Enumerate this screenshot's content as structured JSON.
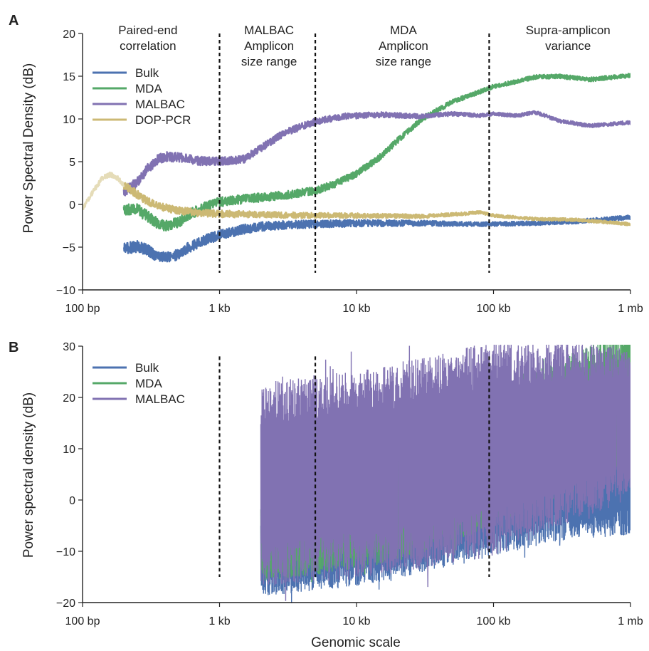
{
  "chart_data": [
    {
      "panel": "A",
      "type": "line",
      "ylabel": "Power Spectral Density (dB)",
      "xlabel": "",
      "x_scale": "log",
      "xlim": [
        100,
        1000000
      ],
      "ylim": [
        -10,
        20
      ],
      "x_ticks": [
        100,
        1000,
        10000,
        100000,
        1000000
      ],
      "x_tick_labels": [
        "100 bp",
        "1 kb",
        "10 kb",
        "100 kb",
        "1 mb"
      ],
      "y_ticks": [
        -10,
        -5,
        0,
        5,
        10,
        15,
        20
      ],
      "y_tick_labels": [
        "−10",
        "−5",
        "0",
        "5",
        "10",
        "15",
        "20"
      ],
      "dashed_lines_x": [
        1000,
        5000,
        93000
      ],
      "region_labels": [
        {
          "lines": [
            "Paired-end",
            "correlation"
          ],
          "x": 300
        },
        {
          "lines": [
            "MALBAC",
            "Amplicon",
            "size range"
          ],
          "x": 2300
        },
        {
          "lines": [
            "MDA",
            "Amplicon",
            "size range"
          ],
          "x": 22000
        },
        {
          "lines": [
            "Supra-amplicon",
            "variance"
          ],
          "x": 350000
        }
      ],
      "legend_position": "upper-left",
      "series": [
        {
          "name": "Bulk",
          "color": "#4c72b0",
          "noise": 0.7,
          "points": [
            [
              200,
              -5.2
            ],
            [
              250,
              -4.9
            ],
            [
              300,
              -5.4
            ],
            [
              350,
              -6.0
            ],
            [
              400,
              -6.2
            ],
            [
              500,
              -5.9
            ],
            [
              600,
              -5.0
            ],
            [
              800,
              -4.1
            ],
            [
              1000,
              -3.6
            ],
            [
              1500,
              -2.9
            ],
            [
              2000,
              -2.6
            ],
            [
              3000,
              -2.4
            ],
            [
              5000,
              -2.3
            ],
            [
              10000,
              -2.2
            ],
            [
              30000,
              -2.2
            ],
            [
              60000,
              -2.3
            ],
            [
              100000,
              -2.3
            ],
            [
              200000,
              -2.2
            ],
            [
              400000,
              -2.0
            ],
            [
              1000000,
              -1.5
            ]
          ]
        },
        {
          "name": "MDA",
          "color": "#55a868",
          "noise": 0.7,
          "points": [
            [
              200,
              -0.5
            ],
            [
              250,
              -0.6
            ],
            [
              300,
              -1.4
            ],
            [
              350,
              -2.2
            ],
            [
              400,
              -2.6
            ],
            [
              500,
              -2.1
            ],
            [
              600,
              -1.2
            ],
            [
              800,
              -0.2
            ],
            [
              1000,
              0.3
            ],
            [
              1500,
              0.6
            ],
            [
              2000,
              0.8
            ],
            [
              3000,
              1.1
            ],
            [
              5000,
              1.6
            ],
            [
              7000,
              2.4
            ],
            [
              10000,
              3.6
            ],
            [
              15000,
              5.6
            ],
            [
              20000,
              7.5
            ],
            [
              30000,
              10.0
            ],
            [
              50000,
              12.0
            ],
            [
              80000,
              13.2
            ],
            [
              100000,
              13.8
            ],
            [
              150000,
              14.4
            ],
            [
              200000,
              14.9
            ],
            [
              300000,
              15.0
            ],
            [
              500000,
              14.6
            ],
            [
              1000000,
              15.1
            ]
          ]
        },
        {
          "name": "MALBAC",
          "color": "#8172b2",
          "noise": 0.6,
          "points": [
            [
              200,
              1.5
            ],
            [
              250,
              2.6
            ],
            [
              300,
              4.2
            ],
            [
              350,
              5.2
            ],
            [
              400,
              5.6
            ],
            [
              500,
              5.5
            ],
            [
              700,
              5.1
            ],
            [
              1000,
              5.0
            ],
            [
              1500,
              5.3
            ],
            [
              2000,
              6.6
            ],
            [
              3000,
              8.4
            ],
            [
              5000,
              9.7
            ],
            [
              8000,
              10.3
            ],
            [
              15000,
              10.5
            ],
            [
              30000,
              10.3
            ],
            [
              50000,
              10.6
            ],
            [
              80000,
              10.4
            ],
            [
              100000,
              10.6
            ],
            [
              150000,
              10.4
            ],
            [
              200000,
              10.8
            ],
            [
              300000,
              9.8
            ],
            [
              500000,
              9.2
            ],
            [
              1000000,
              9.6
            ]
          ]
        },
        {
          "name": "DOP-PCR",
          "color": "#ccb974",
          "noise": 0.5,
          "points": [
            [
              200,
              2.3
            ],
            [
              250,
              1.2
            ],
            [
              300,
              0.3
            ],
            [
              400,
              -0.4
            ],
            [
              500,
              -0.7
            ],
            [
              700,
              -1.0
            ],
            [
              1000,
              -1.1
            ],
            [
              2000,
              -1.2
            ],
            [
              5000,
              -1.3
            ],
            [
              10000,
              -1.3
            ],
            [
              30000,
              -1.4
            ],
            [
              60000,
              -1.1
            ],
            [
              80000,
              -0.9
            ],
            [
              100000,
              -1.3
            ],
            [
              200000,
              -1.7
            ],
            [
              400000,
              -1.8
            ],
            [
              1000000,
              -2.3
            ]
          ]
        },
        {
          "name": "",
          "color": "#e5dcb8",
          "noise": 0.3,
          "points": [
            [
              100,
              -0.5
            ],
            [
              110,
              0.6
            ],
            [
              125,
              2.0
            ],
            [
              140,
              3.1
            ],
            [
              160,
              3.5
            ],
            [
              180,
              3.1
            ],
            [
              200,
              2.3
            ]
          ]
        }
      ]
    },
    {
      "panel": "B",
      "type": "line",
      "ylabel": "Power spectral density (dB)",
      "xlabel": "Genomic scale",
      "x_scale": "log",
      "xlim": [
        100,
        1000000
      ],
      "ylim": [
        -20,
        30
      ],
      "x_ticks": [
        100,
        1000,
        10000,
        100000,
        1000000
      ],
      "x_tick_labels": [
        "100 bp",
        "1 kb",
        "10 kb",
        "100 kb",
        "1 mb"
      ],
      "y_ticks": [
        -20,
        -10,
        0,
        10,
        20,
        30
      ],
      "y_tick_labels": [
        "−20",
        "−10",
        "0",
        "10",
        "20",
        "30"
      ],
      "dashed_lines_x": [
        1000,
        5000,
        93000
      ],
      "legend_position": "upper-left",
      "series": [
        {
          "name": "Bulk",
          "color": "#4c72b0",
          "x_range": [
            2000,
            1000000
          ],
          "center": [
            [
              2000,
              -10
            ],
            [
              10000,
              -7
            ],
            [
              30000,
              -4
            ],
            [
              100000,
              0
            ],
            [
              300000,
              4
            ],
            [
              1000000,
              6
            ]
          ],
          "spread": [
            [
              2000,
              9
            ],
            [
              100000,
              11
            ],
            [
              1000000,
              13
            ]
          ]
        },
        {
          "name": "MDA",
          "color": "#55a868",
          "x_range": [
            2000,
            1000000
          ],
          "center": [
            [
              2000,
              -7
            ],
            [
              10000,
              -3
            ],
            [
              30000,
              1
            ],
            [
              100000,
              8
            ],
            [
              300000,
              14
            ],
            [
              1000000,
              20
            ]
          ],
          "spread": [
            [
              2000,
              9
            ],
            [
              100000,
              13
            ],
            [
              1000000,
              14
            ]
          ]
        },
        {
          "name": "MALBAC",
          "color": "#8172b2",
          "x_range": [
            2000,
            1000000
          ],
          "center": [
            [
              2000,
              3
            ],
            [
              10000,
              5
            ],
            [
              30000,
              7
            ],
            [
              100000,
              10
            ],
            [
              300000,
              13
            ],
            [
              1000000,
              15
            ]
          ],
          "spread": [
            [
              2000,
              20
            ],
            [
              100000,
              21
            ],
            [
              1000000,
              15
            ]
          ]
        }
      ]
    }
  ]
}
